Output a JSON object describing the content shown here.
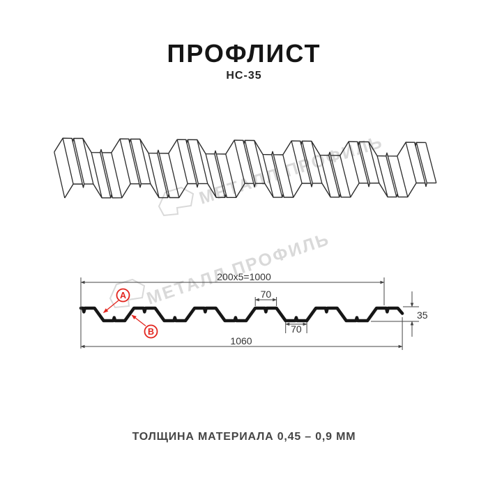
{
  "title": "ПРОФЛИСТ",
  "subtitle": "НС-35",
  "watermark": {
    "text": "МЕТАЛЛ ПРОФИЛЬ"
  },
  "section": {
    "dim_top": "200x5=1000",
    "dim_rib_top": "70",
    "dim_rib_bottom": "70",
    "dim_total_width": "1060",
    "dim_height": "35",
    "label_a": "A",
    "label_b": "B"
  },
  "footer": "ТОЛЩИНА МАТЕРИАЛА 0,45 – 0,9 ММ",
  "colors": {
    "accent_red": "#e2241d",
    "drawing_line": "#2b2b2b",
    "profile_line": "#161616",
    "dimension_line": "#444444",
    "watermark_gray": "#d9d9d9"
  }
}
